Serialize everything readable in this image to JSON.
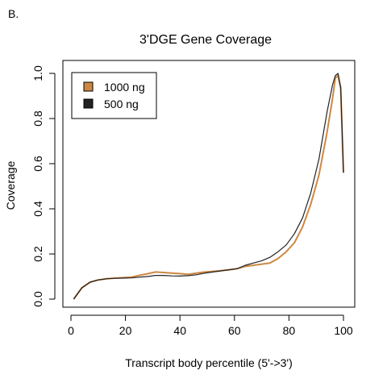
{
  "panel_label": "B.",
  "chart_data": {
    "type": "line",
    "title": "3'DGE Gene Coverage",
    "xlabel": "Transcript body percentile (5'->3')",
    "ylabel": "Coverage",
    "xlim": [
      0,
      100
    ],
    "ylim": [
      0,
      1.0
    ],
    "xticks": [
      0,
      20,
      40,
      60,
      80,
      100
    ],
    "yticks": [
      0.0,
      0.2,
      0.4,
      0.6,
      0.8,
      1.0
    ],
    "ytick_labels": [
      "0.0",
      "0.2",
      "0.4",
      "0.6",
      "0.8",
      "1.0"
    ],
    "legend_position": "top-left",
    "grid": false,
    "x": [
      1,
      4,
      7,
      10,
      13,
      16,
      19,
      22,
      25,
      28,
      31,
      34,
      37,
      40,
      43,
      46,
      49,
      52,
      55,
      58,
      61,
      64,
      67,
      70,
      73,
      76,
      79,
      82,
      85,
      88,
      91,
      94,
      96,
      97,
      98,
      99,
      100
    ],
    "series": [
      {
        "name": "1000 ng",
        "color": "#cc8844",
        "values": [
          0.0,
          0.05,
          0.075,
          0.085,
          0.09,
          0.093,
          0.095,
          0.097,
          0.105,
          0.112,
          0.12,
          0.118,
          0.115,
          0.113,
          0.11,
          0.115,
          0.12,
          0.123,
          0.126,
          0.13,
          0.135,
          0.145,
          0.15,
          0.155,
          0.16,
          0.18,
          0.21,
          0.25,
          0.32,
          0.42,
          0.55,
          0.74,
          0.89,
          0.98,
          0.99,
          0.93,
          0.56
        ]
      },
      {
        "name": "500 ng",
        "color": "#222222",
        "values": [
          0.0,
          0.05,
          0.075,
          0.085,
          0.09,
          0.092,
          0.093,
          0.094,
          0.097,
          0.1,
          0.105,
          0.105,
          0.103,
          0.102,
          0.104,
          0.108,
          0.115,
          0.12,
          0.125,
          0.13,
          0.135,
          0.15,
          0.16,
          0.17,
          0.185,
          0.21,
          0.24,
          0.29,
          0.36,
          0.47,
          0.62,
          0.83,
          0.95,
          0.99,
          1.0,
          0.94,
          0.56
        ]
      }
    ]
  }
}
